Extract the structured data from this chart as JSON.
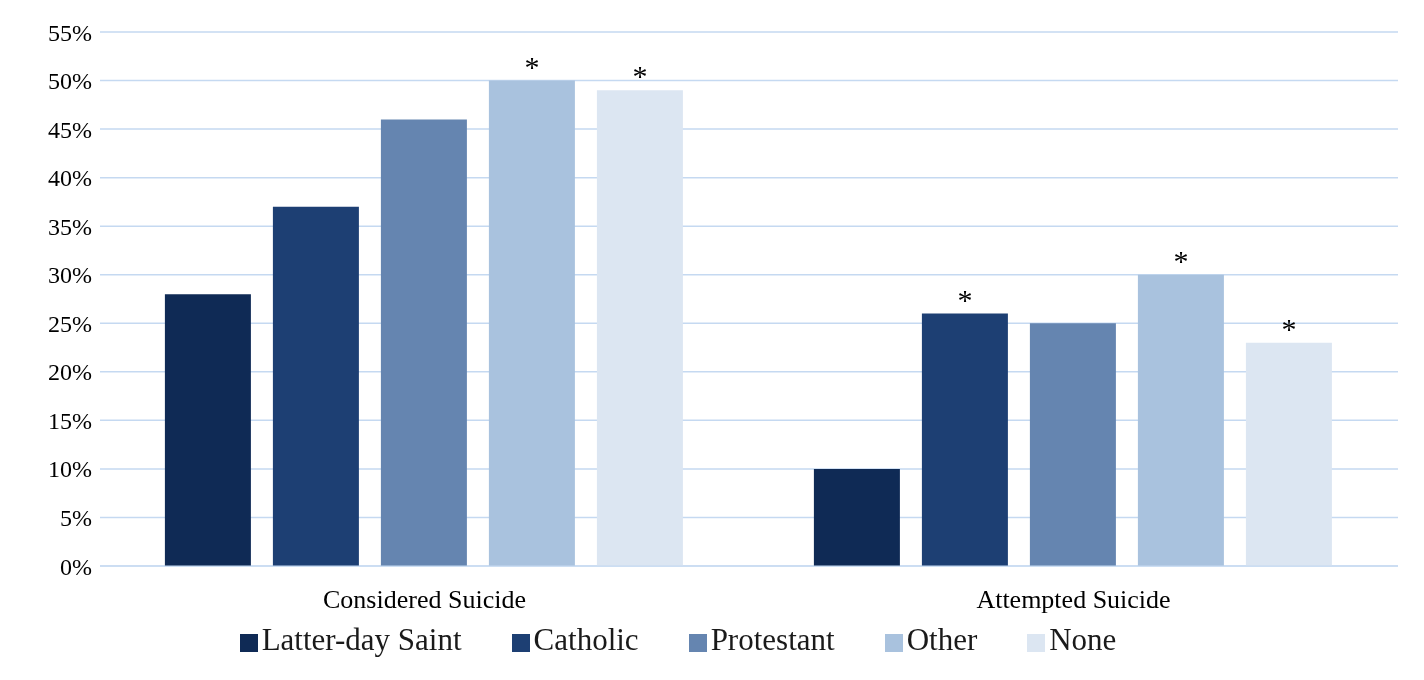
{
  "chart_data": {
    "type": "bar",
    "categories": [
      "Considered Suicide",
      "Attempted Suicide"
    ],
    "series": [
      {
        "name": "Latter-day Saint",
        "color": "#0f2a55",
        "values": [
          28,
          10
        ]
      },
      {
        "name": "Catholic",
        "color": "#1d3f73",
        "values": [
          37,
          26
        ],
        "value_labels": [
          null,
          "*"
        ]
      },
      {
        "name": "Protestant",
        "color": "#6585b0",
        "values": [
          46,
          25
        ]
      },
      {
        "name": "Other",
        "color": "#a9c2de",
        "values": [
          50,
          30
        ],
        "value_labels": [
          "*",
          "*"
        ]
      },
      {
        "name": "None",
        "color": "#dce6f2",
        "values": [
          49,
          23
        ],
        "value_labels": [
          "*",
          "*"
        ]
      }
    ],
    "ylim": [
      0,
      55
    ],
    "yticks": [
      {
        "value": 0,
        "label": "0%"
      },
      {
        "value": 5,
        "label": "5%"
      },
      {
        "value": 10,
        "label": "10%"
      },
      {
        "value": 15,
        "label": "15%"
      },
      {
        "value": 20,
        "label": "20%"
      },
      {
        "value": 25,
        "label": "25%"
      },
      {
        "value": 30,
        "label": "30%"
      },
      {
        "value": 35,
        "label": "35%"
      },
      {
        "value": 40,
        "label": "40%"
      },
      {
        "value": 45,
        "label": "45%"
      },
      {
        "value": 50,
        "label": "50%"
      },
      {
        "value": 55,
        "label": "55%"
      }
    ],
    "grid": "y",
    "legend": "bottom"
  }
}
